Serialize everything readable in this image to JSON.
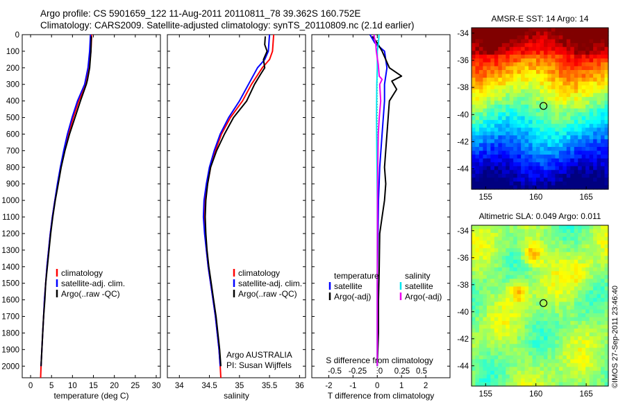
{
  "header": {
    "line1": "Argo profile: CS 5901659_122 11-Aug-2011 20110811_78 39.362S 160.752E",
    "line2": "Climatology: CARS2009. Satellite-adjusted climatology: synTS_20110809.nc (2.1d earlier)"
  },
  "credit": "©IMOS 27-Sep-2011 23:46:40",
  "colors": {
    "climatology": "#ff0000",
    "satellite_adj": "#0000ff",
    "argo": "#000000",
    "sal_satellite": "#00e5ee",
    "sal_argo": "#ee00ee"
  },
  "chart_data": [
    {
      "type": "line",
      "id": "temperature",
      "xlabel": "temperature (deg C)",
      "xlim": [
        -2,
        31
      ],
      "xticks": [
        0,
        5,
        10,
        15,
        20,
        25,
        30
      ],
      "ylim": [
        2070,
        0
      ],
      "yticks": [
        0,
        100,
        200,
        300,
        400,
        500,
        600,
        700,
        800,
        900,
        1000,
        1100,
        1200,
        1300,
        1400,
        1500,
        1600,
        1700,
        1800,
        1900,
        2000
      ],
      "legend": [
        "climatology",
        "satellite-adj. clim.",
        "Argo(..raw -QC)"
      ],
      "series": [
        {
          "name": "climatology",
          "color": "#ff0000",
          "points": [
            [
              14.6,
              0
            ],
            [
              14.4,
              100
            ],
            [
              14.0,
              200
            ],
            [
              13.2,
              300
            ],
            [
              11.5,
              400
            ],
            [
              10.2,
              500
            ],
            [
              9.0,
              600
            ],
            [
              8.0,
              700
            ],
            [
              7.2,
              800
            ],
            [
              6.5,
              900
            ],
            [
              5.8,
              1000
            ],
            [
              5.2,
              1100
            ],
            [
              4.7,
              1200
            ],
            [
              4.3,
              1300
            ],
            [
              3.9,
              1400
            ],
            [
              3.6,
              1500
            ],
            [
              3.3,
              1600
            ],
            [
              3.1,
              1700
            ],
            [
              2.9,
              1800
            ],
            [
              2.7,
              1900
            ],
            [
              2.5,
              2000
            ],
            [
              2.4,
              2070
            ]
          ]
        },
        {
          "name": "satellite-adj. clim.",
          "color": "#0000ff",
          "points": [
            [
              14.3,
              0
            ],
            [
              14.1,
              100
            ],
            [
              13.7,
              200
            ],
            [
              12.9,
              300
            ],
            [
              11.2,
              400
            ],
            [
              9.9,
              500
            ],
            [
              8.8,
              600
            ],
            [
              7.9,
              700
            ],
            [
              7.1,
              800
            ],
            [
              6.4,
              900
            ],
            [
              5.8,
              1000
            ],
            [
              5.2,
              1100
            ],
            [
              4.7,
              1200
            ],
            [
              4.3,
              1300
            ],
            [
              3.9,
              1400
            ],
            [
              3.6,
              1500
            ],
            [
              3.3,
              1600
            ],
            [
              3.1,
              1700
            ],
            [
              2.9,
              1800
            ],
            [
              2.7,
              1900
            ],
            [
              2.5,
              2000
            ]
          ]
        },
        {
          "name": "Argo(..raw -QC)",
          "color": "#000000",
          "points": [
            [
              14.5,
              10
            ],
            [
              14.4,
              100
            ],
            [
              14.1,
              200
            ],
            [
              13.6,
              270
            ],
            [
              13.3,
              300
            ],
            [
              11.9,
              400
            ],
            [
              10.6,
              500
            ],
            [
              9.3,
              600
            ],
            [
              8.2,
              700
            ],
            [
              7.3,
              800
            ],
            [
              6.6,
              900
            ],
            [
              5.9,
              1000
            ],
            [
              5.3,
              1100
            ],
            [
              4.8,
              1200
            ],
            [
              4.4,
              1300
            ],
            [
              4.0,
              1400
            ],
            [
              3.6,
              1500
            ],
            [
              3.4,
              1600
            ],
            [
              3.1,
              1700
            ],
            [
              2.9,
              1800
            ],
            [
              2.7,
              1900
            ],
            [
              2.5,
              2000
            ]
          ]
        }
      ]
    },
    {
      "type": "line",
      "id": "salinity",
      "xlabel": "salinity",
      "xlim": [
        33.8,
        36.1
      ],
      "xticks": [
        34,
        34.5,
        35,
        35.5,
        36
      ],
      "xticklabels": [
        "34",
        "34.5",
        "35",
        "35.5",
        "36"
      ],
      "ylim": [
        2070,
        0
      ],
      "legend": [
        "climatology",
        "satellite-adj. clim.",
        "Argo(..raw -QC)"
      ],
      "annotation": [
        "Argo AUSTRALIA",
        "PI: Susan Wijffels"
      ],
      "series": [
        {
          "name": "climatology",
          "color": "#ff0000",
          "points": [
            [
              35.57,
              0
            ],
            [
              35.55,
              100
            ],
            [
              35.5,
              150
            ],
            [
              35.38,
              200
            ],
            [
              35.2,
              300
            ],
            [
              35.05,
              400
            ],
            [
              34.85,
              500
            ],
            [
              34.7,
              600
            ],
            [
              34.6,
              700
            ],
            [
              34.52,
              800
            ],
            [
              34.47,
              900
            ],
            [
              34.43,
              1000
            ],
            [
              34.42,
              1100
            ],
            [
              34.43,
              1200
            ],
            [
              34.45,
              1300
            ],
            [
              34.48,
              1400
            ],
            [
              34.52,
              1500
            ],
            [
              34.56,
              1600
            ],
            [
              34.6,
              1700
            ],
            [
              34.63,
              1800
            ],
            [
              34.66,
              1900
            ],
            [
              34.68,
              2000
            ],
            [
              34.69,
              2070
            ]
          ]
        },
        {
          "name": "satellite-adj. clim.",
          "color": "#0000ff",
          "points": [
            [
              35.5,
              0
            ],
            [
              35.48,
              100
            ],
            [
              35.42,
              150
            ],
            [
              35.3,
              200
            ],
            [
              35.15,
              300
            ],
            [
              35.0,
              400
            ],
            [
              34.82,
              500
            ],
            [
              34.68,
              600
            ],
            [
              34.58,
              700
            ],
            [
              34.5,
              800
            ],
            [
              34.45,
              900
            ],
            [
              34.41,
              1000
            ],
            [
              34.4,
              1100
            ],
            [
              34.42,
              1200
            ],
            [
              34.45,
              1300
            ],
            [
              34.48,
              1400
            ],
            [
              34.52,
              1500
            ],
            [
              34.56,
              1600
            ],
            [
              34.6,
              1700
            ],
            [
              34.63,
              1800
            ],
            [
              34.66,
              1900
            ],
            [
              34.68,
              2000
            ]
          ]
        },
        {
          "name": "Argo(..raw -QC)",
          "color": "#000000",
          "points": [
            [
              35.43,
              10
            ],
            [
              35.42,
              60
            ],
            [
              35.46,
              100
            ],
            [
              35.4,
              150
            ],
            [
              35.42,
              200
            ],
            [
              35.35,
              240
            ],
            [
              35.25,
              300
            ],
            [
              35.12,
              400
            ],
            [
              34.9,
              500
            ],
            [
              34.75,
              600
            ],
            [
              34.62,
              700
            ],
            [
              34.52,
              800
            ],
            [
              34.47,
              900
            ],
            [
              34.44,
              1000
            ],
            [
              34.43,
              1100
            ],
            [
              34.44,
              1200
            ],
            [
              34.46,
              1300
            ],
            [
              34.49,
              1400
            ],
            [
              34.53,
              1500
            ],
            [
              34.57,
              1600
            ],
            [
              34.61,
              1700
            ],
            [
              34.64,
              1800
            ],
            [
              34.67,
              1900
            ],
            [
              34.69,
              2000
            ]
          ]
        }
      ]
    },
    {
      "type": "line",
      "id": "difference",
      "xlabel": "T difference from climatology",
      "top_label": "S difference from climatology",
      "xlim": [
        -2.7,
        3.0
      ],
      "xticks": [
        -2,
        -1,
        0,
        1,
        2
      ],
      "xticklabels": [
        "-2",
        "-1",
        "0",
        "1",
        "2"
      ],
      "sticks": [
        -0.5,
        -0.25,
        0,
        0.25,
        0.5
      ],
      "sticklabels": [
        "-0.5",
        "-0.25",
        "0",
        "0.25",
        "0.5"
      ],
      "ylim": [
        2070,
        0
      ],
      "legend_temperature": [
        "temperature",
        "satellite",
        "Argo(-adj)"
      ],
      "legend_salinity": [
        "salinity",
        "satellite",
        "Argo(-adj)"
      ],
      "series": [
        {
          "name": "temperature satellite",
          "color": "#0000ff",
          "points": [
            [
              -0.3,
              0
            ],
            [
              -0.1,
              50
            ],
            [
              0.3,
              100
            ],
            [
              0.4,
              200
            ],
            [
              0.3,
              300
            ],
            [
              0.3,
              400
            ],
            [
              0.2,
              600
            ],
            [
              0.1,
              800
            ],
            [
              0.05,
              1000
            ],
            [
              0.0,
              1500
            ],
            [
              0.0,
              2000
            ]
          ]
        },
        {
          "name": "temperature Argo(-adj)",
          "color": "#000000",
          "points": [
            [
              -0.2,
              10
            ],
            [
              0.0,
              50
            ],
            [
              0.2,
              100
            ],
            [
              0.5,
              200
            ],
            [
              1.0,
              250
            ],
            [
              0.6,
              280
            ],
            [
              0.8,
              330
            ],
            [
              0.5,
              400
            ],
            [
              0.4,
              600
            ],
            [
              0.3,
              800
            ],
            [
              0.35,
              900
            ],
            [
              0.3,
              1000
            ],
            [
              0.2,
              1100
            ],
            [
              0.1,
              1200
            ],
            [
              0.08,
              1400
            ],
            [
              0.05,
              1600
            ],
            [
              0.05,
              1800
            ],
            [
              0.0,
              2000
            ]
          ]
        },
        {
          "name": "salinity satellite",
          "color": "#00e5ee",
          "points": [
            [
              0.07,
              0
            ],
            [
              0.05,
              50
            ],
            [
              0.0,
              100
            ],
            [
              0.0,
              200
            ],
            [
              -0.02,
              300
            ],
            [
              -0.03,
              500
            ],
            [
              -0.02,
              700
            ],
            [
              0.0,
              1000
            ],
            [
              0.0,
              1500
            ],
            [
              0.0,
              2000
            ]
          ]
        },
        {
          "name": "salinity Argo(-adj)",
          "color": "#ee00ee",
          "points": [
            [
              -0.14,
              0
            ],
            [
              -0.06,
              60
            ],
            [
              -0.04,
              100
            ],
            [
              0.04,
              180
            ],
            [
              0.08,
              250
            ],
            [
              0.2,
              270
            ],
            [
              0.1,
              300
            ],
            [
              0.14,
              400
            ],
            [
              0.08,
              500
            ],
            [
              0.04,
              600
            ],
            [
              0.02,
              800
            ],
            [
              0.01,
              1000
            ],
            [
              0.0,
              1500
            ],
            [
              0.0,
              2000
            ]
          ]
        }
      ]
    },
    {
      "type": "heatmap",
      "id": "sst",
      "title": "AMSR-E SST: 14 Argo: 14",
      "xlim": [
        153.6,
        167.2
      ],
      "ylim": [
        -45.5,
        -33.6
      ],
      "xticks": [
        155,
        160,
        165
      ],
      "yticks": [
        -34,
        -36,
        -38,
        -40,
        -42,
        -44
      ],
      "marker": [
        160.75,
        -39.36
      ]
    },
    {
      "type": "heatmap",
      "id": "sla",
      "title": "Altimetric SLA: 0.049 Argo: 0.011",
      "xlim": [
        153.6,
        167.2
      ],
      "ylim": [
        -45.5,
        -33.6
      ],
      "xticks": [
        155,
        160,
        165
      ],
      "yticks": [
        -34,
        -36,
        -38,
        -40,
        -42,
        -44
      ],
      "marker": [
        160.75,
        -39.36
      ]
    }
  ]
}
